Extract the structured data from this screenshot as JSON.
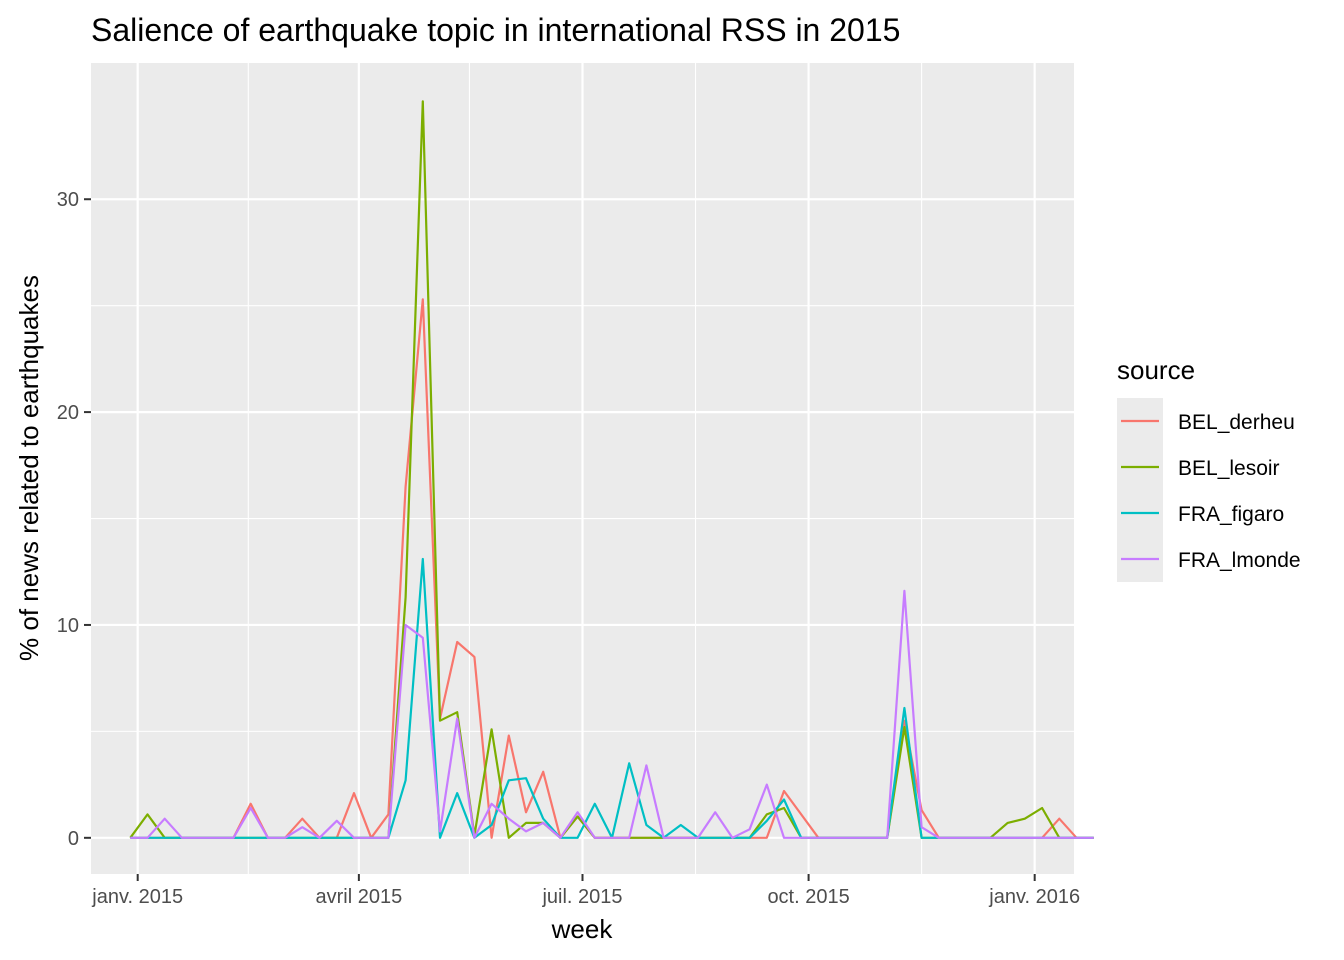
{
  "chart_data": {
    "type": "line",
    "title": "Salience of earthquake topic in international RSS in 2015",
    "xlabel": "week",
    "ylabel": "% of news related to earthquakes",
    "x_start": "2014-12-29",
    "x_step_days": 7,
    "x_ticks": [
      {
        "date": "2015-01-01",
        "label": "janv. 2015"
      },
      {
        "date": "2015-04-01",
        "label": "avril 2015"
      },
      {
        "date": "2015-07-01",
        "label": "juil. 2015"
      },
      {
        "date": "2015-10-01",
        "label": "oct. 2015"
      },
      {
        "date": "2016-01-01",
        "label": "janv. 2016"
      }
    ],
    "x_minor_ticks": [
      "2015-02-15",
      "2015-05-16",
      "2015-08-16",
      "2015-11-16"
    ],
    "xlim": [
      "2014-12-13",
      "2016-01-17"
    ],
    "y_ticks": [
      0,
      10,
      20,
      30
    ],
    "y_minor_ticks": [
      5,
      15,
      25
    ],
    "ylim": [
      -1.7,
      36.4
    ],
    "grid": true,
    "legend": {
      "title": "source",
      "position": "right"
    },
    "series": [
      {
        "name": "BEL_derheu",
        "color": "#F8766D",
        "values": [
          0,
          0,
          0,
          0,
          0,
          0,
          0,
          1.6,
          0,
          0,
          0.9,
          0,
          0,
          2.1,
          0,
          1.1,
          16.5,
          25.3,
          5.6,
          9.2,
          8.5,
          0,
          4.8,
          1.2,
          3.1,
          0,
          1.0,
          0,
          0,
          0,
          0,
          0,
          0,
          0,
          0,
          0,
          0,
          0,
          2.2,
          1.1,
          0,
          0,
          0,
          0,
          0,
          5.5,
          1.3,
          0,
          0,
          0,
          0,
          0,
          0,
          0,
          0.9,
          0,
          0
        ]
      },
      {
        "name": "BEL_lesoir",
        "color": "#7CAE00",
        "values": [
          0,
          1.1,
          0,
          0,
          0,
          0,
          0,
          0,
          0,
          0,
          0,
          0,
          0,
          0,
          0,
          0,
          11.3,
          34.6,
          5.5,
          5.9,
          0.1,
          5.1,
          0,
          0.7,
          0.7,
          0,
          1.0,
          0,
          0,
          0,
          0,
          0,
          0,
          0,
          0,
          0,
          0,
          1.1,
          1.4,
          0,
          0,
          0,
          0,
          0,
          0,
          5.2,
          0,
          0,
          0,
          0,
          0,
          0.7,
          0.9,
          1.4,
          0,
          0,
          0
        ]
      },
      {
        "name": "FRA_figaro",
        "color": "#00BFC4",
        "values": [
          0,
          0,
          0,
          0,
          0,
          0,
          0,
          0,
          0,
          0,
          0,
          0,
          0,
          0,
          0,
          0,
          2.7,
          13.1,
          0,
          2.1,
          0,
          0.6,
          2.7,
          2.8,
          0.9,
          0,
          0,
          1.6,
          0,
          3.5,
          0.6,
          0,
          0.6,
          0,
          0,
          0,
          0,
          0.8,
          1.8,
          0,
          0,
          0,
          0,
          0,
          0,
          6.1,
          0,
          0,
          0,
          0,
          0,
          0,
          0,
          0,
          0,
          0,
          0
        ]
      },
      {
        "name": "FRA_lmonde",
        "color": "#C77CFF",
        "values": [
          0,
          0,
          0.9,
          0,
          0,
          0,
          0,
          1.4,
          0,
          0,
          0.5,
          0,
          0.8,
          0,
          0,
          0,
          10.0,
          9.4,
          0.3,
          5.6,
          0,
          1.6,
          0.9,
          0.3,
          0.7,
          0,
          1.2,
          0,
          0,
          0,
          3.4,
          0,
          0,
          0,
          1.2,
          0,
          0.4,
          2.5,
          0,
          0,
          0,
          0,
          0,
          0,
          0,
          11.6,
          0.5,
          0,
          0,
          0,
          0,
          0,
          0,
          0,
          0,
          0,
          0
        ]
      }
    ]
  }
}
